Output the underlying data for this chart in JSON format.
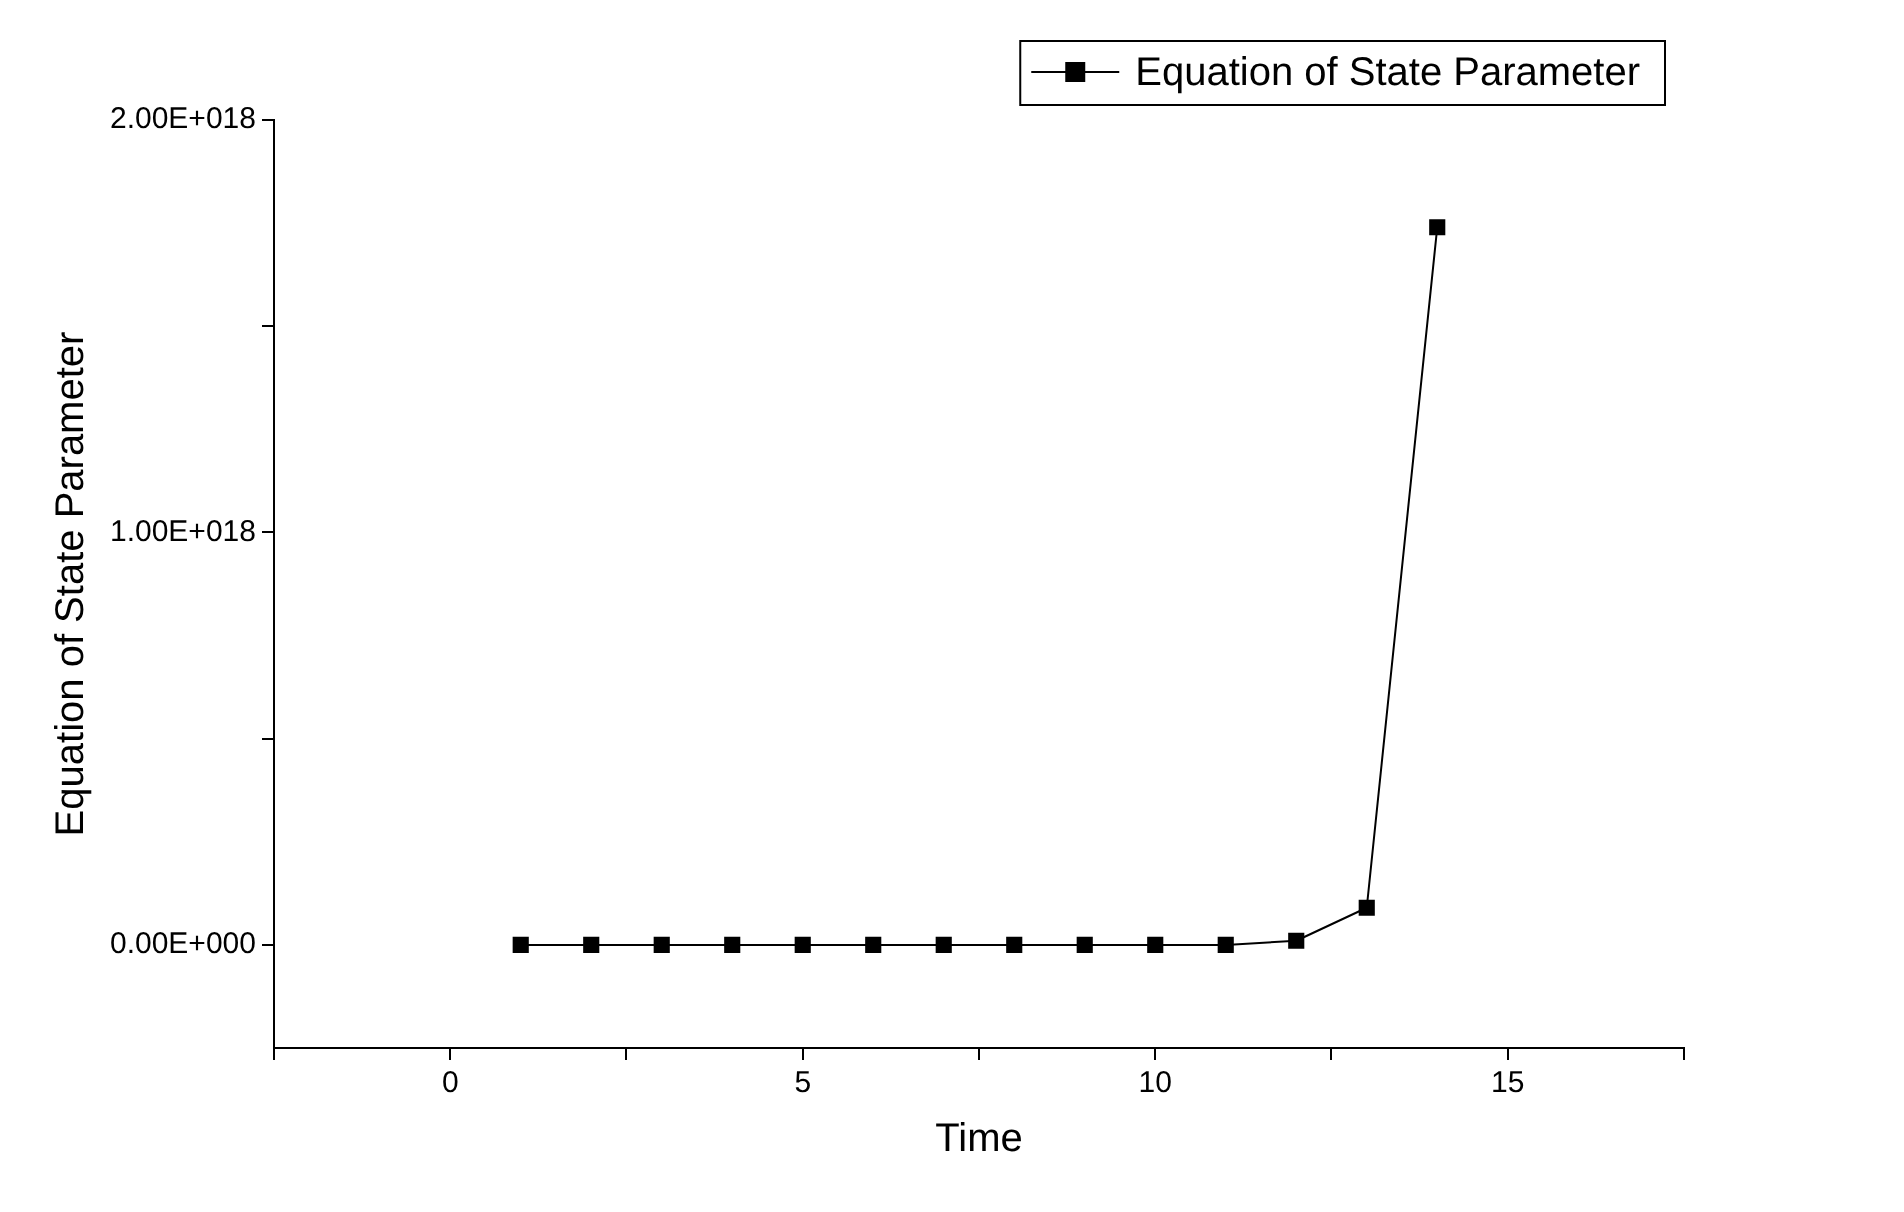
{
  "chart_data": {
    "type": "line",
    "xlabel": "Time",
    "ylabel": "Equation of State Parameter",
    "x": [
      1,
      2,
      3,
      4,
      5,
      6,
      7,
      8,
      9,
      10,
      11,
      12,
      13,
      14
    ],
    "series": [
      {
        "name": "Equation of State Parameter",
        "color": "#000000",
        "values": [
          0,
          0,
          0,
          0,
          0,
          0,
          0,
          0,
          0,
          0,
          0,
          1e+16,
          9e+16,
          1.74e+18
        ]
      }
    ],
    "xlim": [
      -2.5,
      17.5
    ],
    "xticks": [
      {
        "value": -2.5,
        "label": null
      },
      0,
      {
        "value": 2.5,
        "label": null
      },
      5,
      {
        "value": 7.5,
        "label": null
      },
      10,
      {
        "value": 12.5,
        "label": null
      },
      15,
      {
        "value": 17.5,
        "label": null
      }
    ],
    "ylim": [
      -2.5e+17,
      2e+18
    ],
    "yticks": [
      {
        "value": 0,
        "label": "0.00E+000"
      },
      {
        "value": 5e+17,
        "label": null
      },
      {
        "value": 1e+18,
        "label": "1.00E+018"
      },
      {
        "value": 1.5e+18,
        "label": null
      },
      {
        "value": 2e+18,
        "label": "2.00E+018"
      }
    ],
    "grid": false,
    "legend": "top right",
    "marker": "square",
    "line_style": "solid"
  }
}
